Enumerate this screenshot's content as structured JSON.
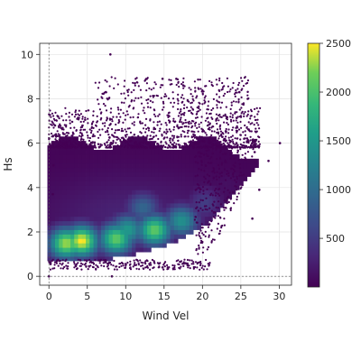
{
  "chart_data": {
    "type": "heatmap",
    "title": "",
    "xlabel": "Wind Vel",
    "ylabel": "Hs",
    "xlim": [
      -1.2,
      31.6
    ],
    "ylim": [
      -0.4,
      10.5
    ],
    "xticks": [
      0,
      5,
      10,
      15,
      20,
      25,
      30
    ],
    "yticks": [
      0,
      2,
      4,
      6,
      8,
      10
    ],
    "grid": true,
    "reference_lines": {
      "x": 0,
      "y": 0,
      "style": "dashed"
    },
    "colorbar": {
      "colormap": "viridis",
      "range": [
        1,
        2500
      ],
      "ticks": [
        500,
        1000,
        1500,
        2000,
        2500
      ]
    },
    "density_core": {
      "description_points": [
        {
          "x": 4,
          "y": 1.5,
          "count": 2500
        },
        {
          "x": 2,
          "y": 1.4,
          "count": 2300
        },
        {
          "x": 8.5,
          "y": 1.6,
          "count": 2100
        },
        {
          "x": 13.5,
          "y": 2.0,
          "count": 2100
        },
        {
          "x": 10,
          "y": 2.0,
          "count": 1500
        },
        {
          "x": 17,
          "y": 2.4,
          "count": 1400
        },
        {
          "x": 12,
          "y": 3.0,
          "count": 900
        },
        {
          "x": 20,
          "y": 3.2,
          "count": 500
        },
        {
          "x": 23,
          "y": 4.0,
          "count": 100
        }
      ]
    },
    "outliers": [
      {
        "x": 8,
        "y": 10.0
      },
      {
        "x": 14.8,
        "y": 8.9
      },
      {
        "x": 16.6,
        "y": 8.9
      },
      {
        "x": 11.2,
        "y": 8.7
      },
      {
        "x": 17.5,
        "y": 8.6
      },
      {
        "x": 7.4,
        "y": 8.3
      },
      {
        "x": 24.8,
        "y": 8.3
      },
      {
        "x": 25.9,
        "y": 8.0
      },
      {
        "x": 30.1,
        "y": 6.0
      },
      {
        "x": 1.2,
        "y": 7.2
      },
      {
        "x": 0.8,
        "y": 6.8
      },
      {
        "x": 28.6,
        "y": 5.2
      },
      {
        "x": 27.4,
        "y": 3.9
      },
      {
        "x": 26.5,
        "y": 2.6
      },
      {
        "x": 26.8,
        "y": 5.6
      },
      {
        "x": 14.8,
        "y": 0.4
      },
      {
        "x": 8.2,
        "y": 0.0
      },
      {
        "x": 0,
        "y": 0.0
      },
      {
        "x": 0.6,
        "y": 5.0
      },
      {
        "x": 0.5,
        "y": 3.7
      }
    ]
  }
}
